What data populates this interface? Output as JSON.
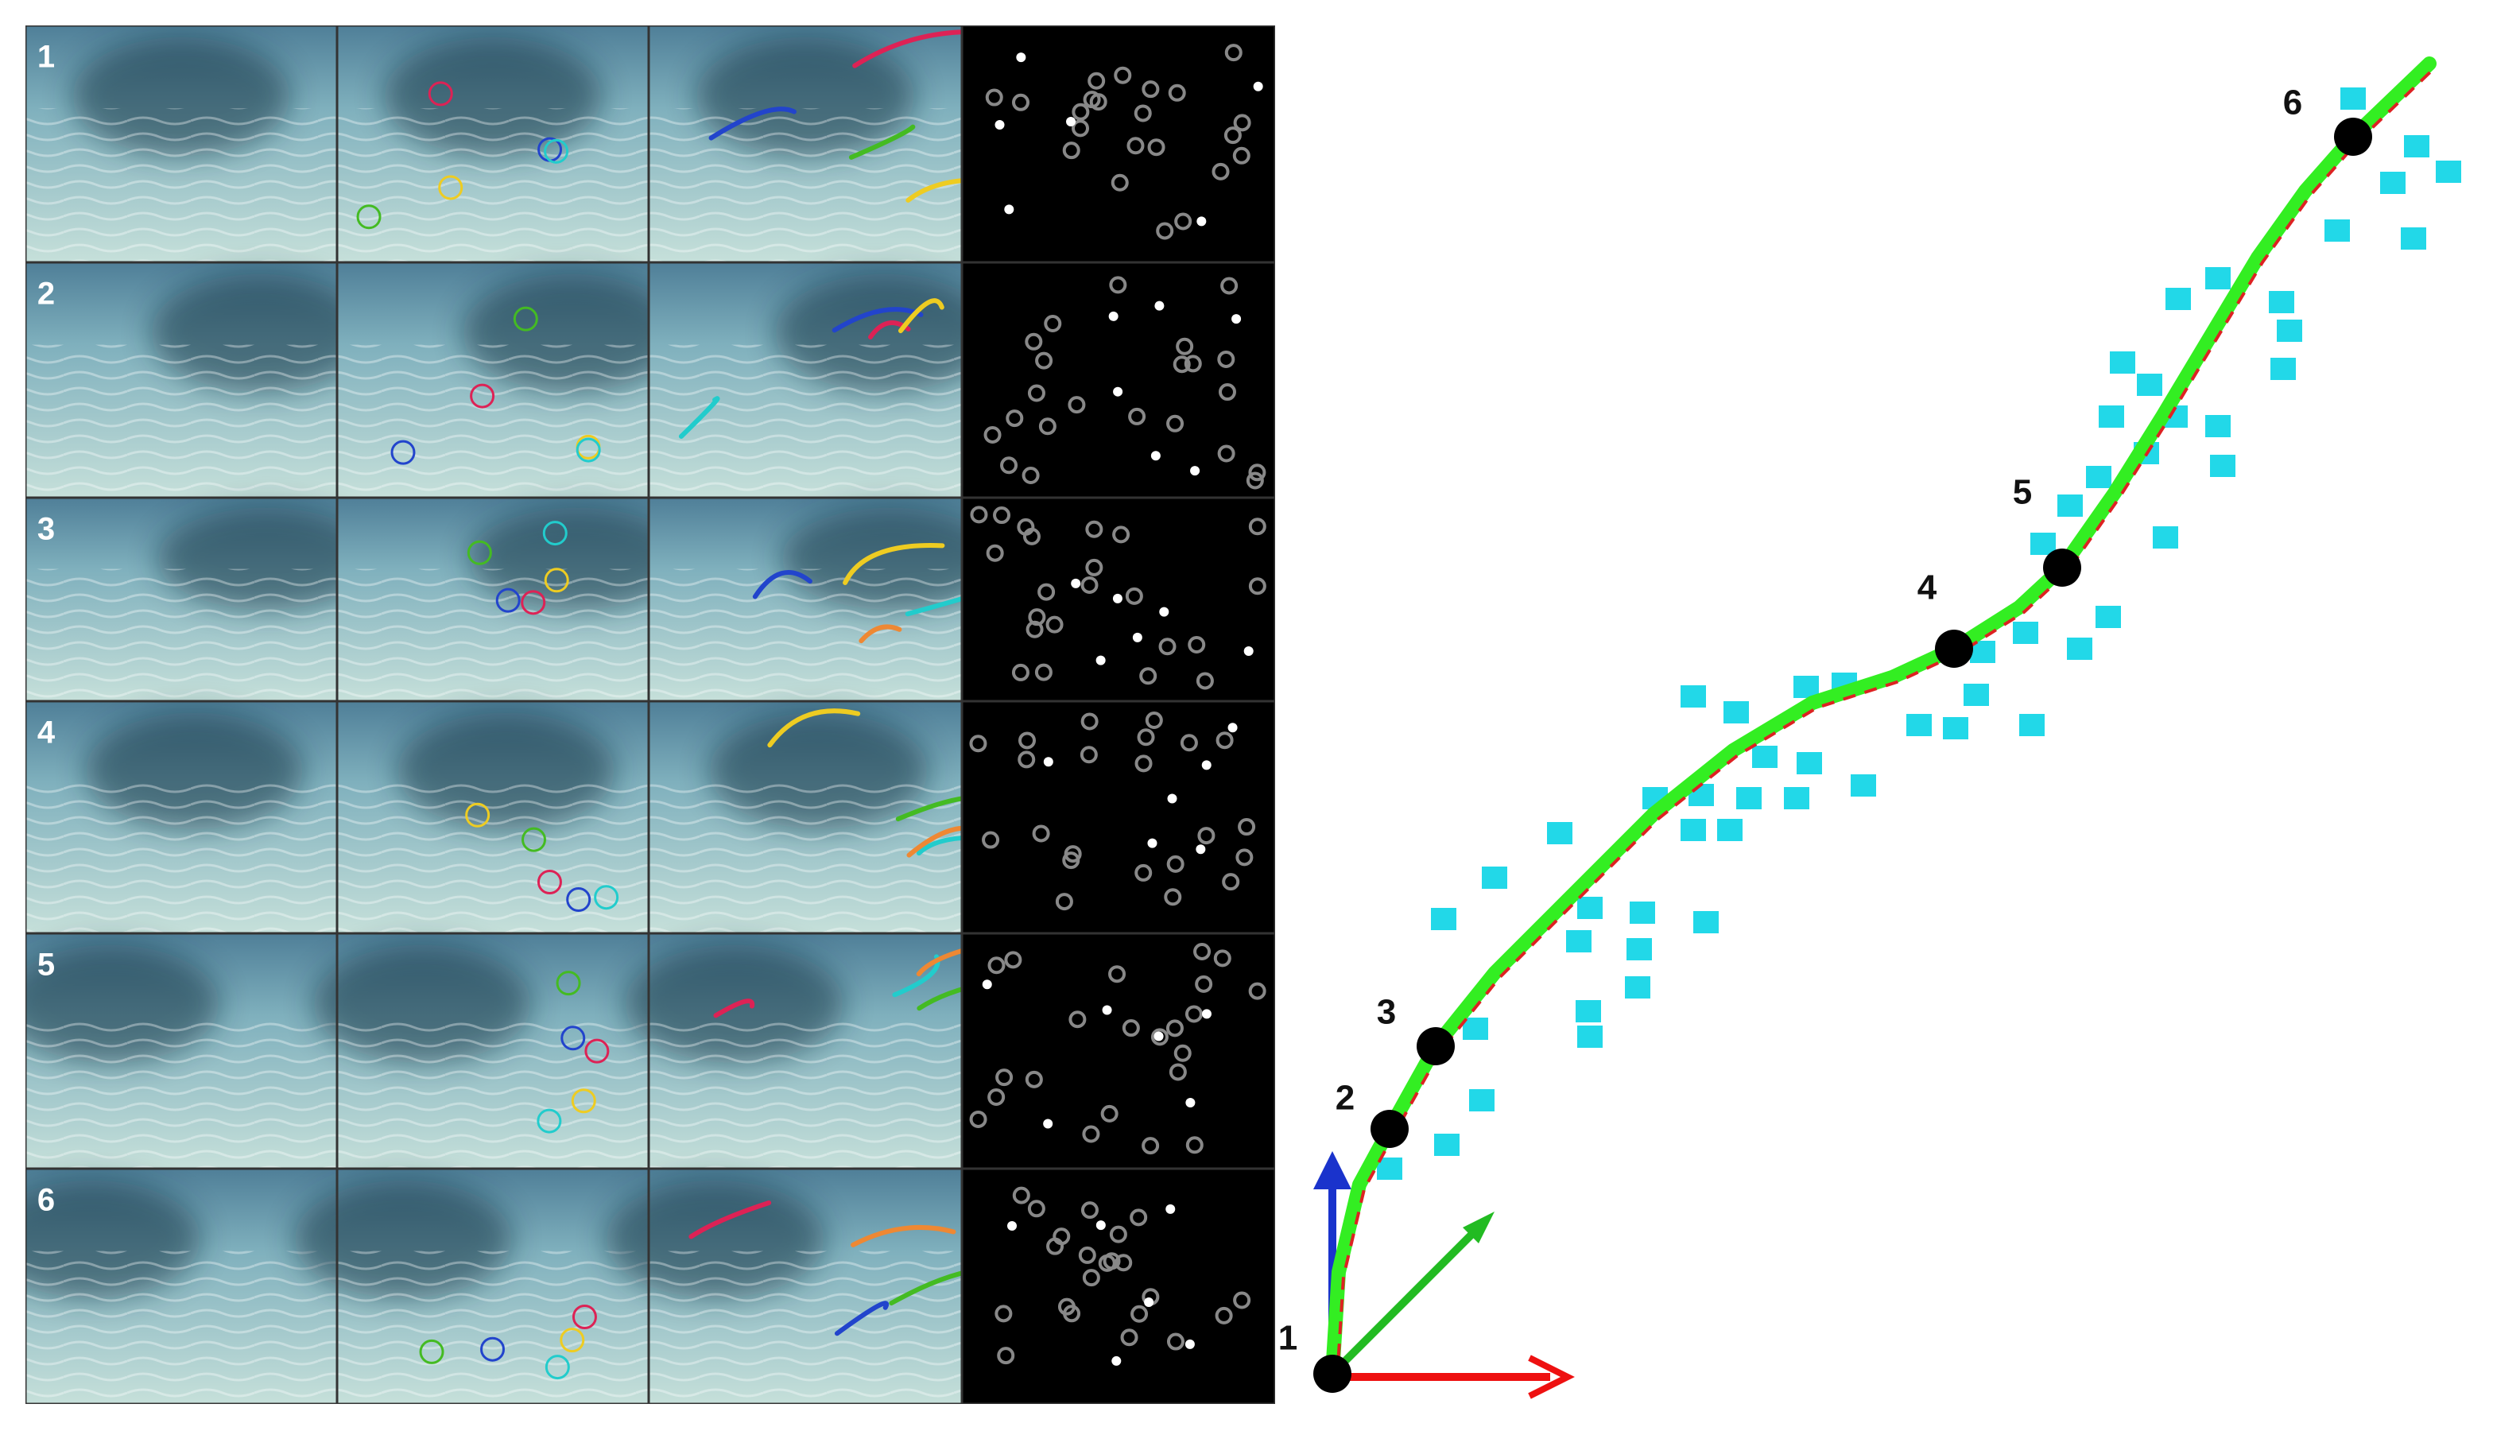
{
  "panel_rows": [
    "1",
    "2",
    "3",
    "4",
    "5",
    "6"
  ],
  "trajectory_waypoints": [
    "1",
    "2",
    "3",
    "4",
    "5",
    "6"
  ]
}
